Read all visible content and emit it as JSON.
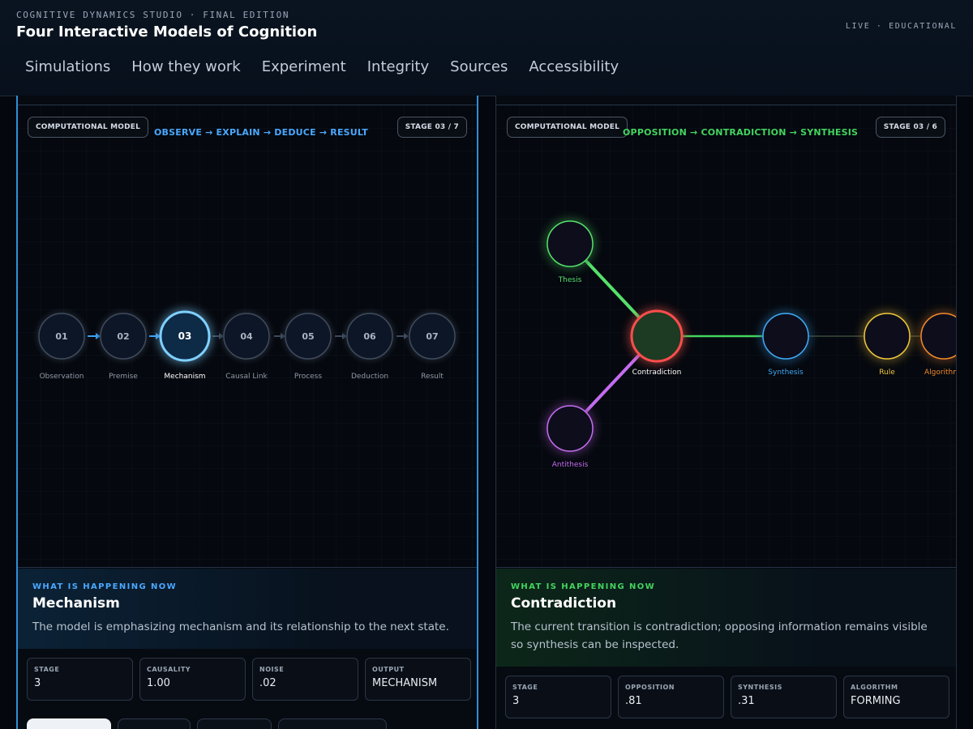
{
  "header": {
    "eyebrow": "COGNITIVE DYNAMICS STUDIO · FINAL EDITION",
    "title": "Four Interactive Models of Cognition",
    "badge": "LIVE · EDUCATIONAL",
    "nav": [
      "Simulations",
      "How they work",
      "Experiment",
      "Integrity",
      "Sources",
      "Accessibility"
    ]
  },
  "left": {
    "model_label": "COMPUTATIONAL MODEL",
    "flow": "OBSERVE → EXPLAIN → DEDUCE → RESULT",
    "stage_badge": "STAGE 03 / 7",
    "nodes": [
      {
        "num": "01",
        "label": "Observation"
      },
      {
        "num": "02",
        "label": "Premise"
      },
      {
        "num": "03",
        "label": "Mechanism"
      },
      {
        "num": "04",
        "label": "Causal Link"
      },
      {
        "num": "05",
        "label": "Process"
      },
      {
        "num": "06",
        "label": "Deduction"
      },
      {
        "num": "07",
        "label": "Result"
      }
    ],
    "active_index": 2,
    "info": {
      "kicker": "WHAT IS HAPPENING NOW",
      "heading": "Mechanism",
      "description": "The model is emphasizing mechanism and its relationship to the next state."
    },
    "stats": [
      {
        "key": "STAGE",
        "value": "3"
      },
      {
        "key": "CAUSALITY",
        "value": "1.00"
      },
      {
        "key": "NOISE",
        "value": ".02"
      },
      {
        "key": "OUTPUT",
        "value": "MECHANISM"
      }
    ]
  },
  "right": {
    "model_label": "COMPUTATIONAL MODEL",
    "flow": "OPPOSITION → CONTRADICTION → SYNTHESIS",
    "stage_badge": "STAGE 03 / 6",
    "nodes": {
      "thesis": "Thesis",
      "antithesis": "Antithesis",
      "contradiction": "Contradiction",
      "synthesis": "Synthesis",
      "rule": "Rule",
      "algorithm": "Algorithm"
    },
    "info": {
      "kicker": "WHAT IS HAPPENING NOW",
      "heading": "Contradiction",
      "description": "The current transition is contradiction; opposing information remains visible so synthesis can be inspected."
    },
    "stats": [
      {
        "key": "STAGE",
        "value": "3"
      },
      {
        "key": "OPPOSITION",
        "value": ".81"
      },
      {
        "key": "SYNTHESIS",
        "value": ".31"
      },
      {
        "key": "ALGORITHM",
        "value": "FORMING"
      }
    ]
  },
  "colors": {
    "accent_blue": "#4aa8ff",
    "accent_green": "#43d45f",
    "thesis": "#55e06a",
    "antithesis": "#c46cf0",
    "contradiction": "#ff4d4d",
    "synthesis": "#3fa9f5",
    "rule": "#f0c63a",
    "algorithm": "#f08a2a"
  }
}
